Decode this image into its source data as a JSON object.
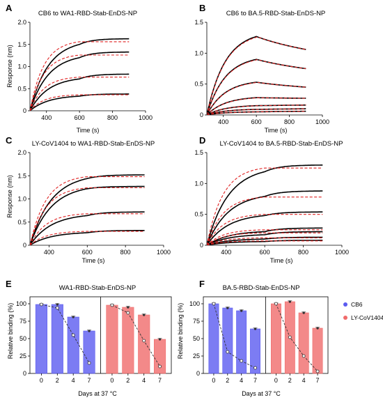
{
  "palette": {
    "cb6": "#5b5bf0",
    "ly": "#f06b6b",
    "fit": "#e02020",
    "data": "#000000",
    "dashed": "#333333"
  },
  "kinetics": [
    {
      "label": "A",
      "title": "CB6 to WA1-RBD-Stab-EnDS-NP",
      "xlabel": "Time (s)",
      "ylabel": "Response (nm)",
      "xlim": [
        300,
        1000
      ],
      "ylim": [
        0,
        2.0
      ],
      "xticks": [
        400,
        600,
        800,
        1000
      ],
      "yticks": [
        0,
        0.5,
        1.0,
        1.5,
        2.0
      ],
      "yticklabels": [
        "0",
        "0.5",
        "1.0",
        "1.5",
        "2.0"
      ],
      "kind": "plateau",
      "t0": 300,
      "t1": 600,
      "t2": 900,
      "curves": [
        {
          "r": 1.5,
          "d": 0.13,
          "fit": 1.56
        },
        {
          "r": 1.2,
          "d": 0.13,
          "fit": 1.26
        },
        {
          "r": 0.72,
          "d": 0.11,
          "fit": 0.76
        },
        {
          "r": 0.33,
          "d": 0.05,
          "fit": 0.36
        }
      ]
    },
    {
      "label": "B",
      "title": "CB6 to BA.5-RBD-Stab-EnDS-NP",
      "xlabel": "Time (s)",
      "ylabel": "",
      "xlim": [
        300,
        1000
      ],
      "ylim": [
        0,
        1.5
      ],
      "xticks": [
        400,
        600,
        800,
        1000
      ],
      "yticks": [
        0,
        0.5,
        1.0,
        1.5
      ],
      "yticklabels": [
        "0",
        "0.5",
        "1.0",
        "1.5"
      ],
      "kind": "decay",
      "t0": 300,
      "t1": 600,
      "t2": 900,
      "curves": [
        {
          "r": 1.27,
          "d": 1.06
        },
        {
          "r": 0.9,
          "d": 0.75
        },
        {
          "r": 0.53,
          "d": 0.45
        },
        {
          "r": 0.28,
          "d": 0.27
        },
        {
          "r": 0.15,
          "d": 0.16
        },
        {
          "r": 0.09,
          "d": 0.1
        },
        {
          "r": 0.05,
          "d": 0.06
        }
      ]
    },
    {
      "label": "C",
      "title": "LY-CoV1404 to WA1-RBD-Stab-EnDS-NP",
      "xlabel": "Time (s)",
      "ylabel": "Response (nm)",
      "xlim": [
        300,
        1000
      ],
      "ylim": [
        0,
        2.0
      ],
      "xticks": [
        400,
        600,
        800,
        1000
      ],
      "yticks": [
        0,
        0.5,
        1.0,
        1.5,
        2.0
      ],
      "yticklabels": [
        "0",
        "0.5",
        "1.0",
        "1.5",
        "2.0"
      ],
      "kind": "plateau",
      "t0": 300,
      "t1": 600,
      "t2": 900,
      "curves": [
        {
          "r": 1.44,
          "d": 0.08,
          "fit": 1.48
        },
        {
          "r": 1.22,
          "d": 0.05,
          "fit": 1.24
        },
        {
          "r": 0.64,
          "d": 0.08,
          "fit": 0.68
        },
        {
          "r": 0.27,
          "d": 0.05,
          "fit": 0.3
        }
      ]
    },
    {
      "label": "D",
      "title": "LY-CoV1404 to BA.5-RBD-Stab-EnDS-NP",
      "xlabel": "Time (s)",
      "ylabel": "",
      "xlim": [
        300,
        1000
      ],
      "ylim": [
        0,
        1.5
      ],
      "xticks": [
        400,
        600,
        800,
        1000
      ],
      "yticks": [
        0,
        0.5,
        1.0,
        1.5
      ],
      "yticklabels": [
        "0",
        "0.5",
        "1.0",
        "1.5"
      ],
      "kind": "plateau",
      "t0": 300,
      "t1": 600,
      "t2": 900,
      "curves": [
        {
          "r": 1.19,
          "d": 0.11,
          "fit": 1.25
        },
        {
          "r": 0.79,
          "d": 0.09,
          "fit": 0.78
        },
        {
          "r": 0.48,
          "d": 0.06,
          "fit": 0.5
        },
        {
          "r": 0.22,
          "d": 0.06,
          "fit": 0.25
        },
        {
          "r": 0.17,
          "d": 0.05,
          "fit": 0.2
        },
        {
          "r": 0.1,
          "d": 0.03,
          "fit": 0.12
        },
        {
          "r": 0.06,
          "d": 0.02,
          "fit": 0.07
        }
      ]
    }
  ],
  "stability": [
    {
      "label": "E",
      "title": "WA1-RBD-Stab-EnDS-NP",
      "ylabel": "Relative binding (%)",
      "ylim": [
        0,
        110
      ],
      "yticks": [
        0,
        25,
        50,
        75,
        100
      ],
      "groups": [
        {
          "antibody": "CB6",
          "days": [
            "0",
            "2",
            "4",
            "7"
          ],
          "bars": [
            99,
            99,
            81,
            61
          ],
          "dashed": [
            99,
            94,
            55,
            15
          ]
        },
        {
          "antibody": "LY-CoV1404",
          "days": [
            "0",
            "2",
            "4",
            "7"
          ],
          "bars": [
            98,
            95,
            84,
            49
          ],
          "dashed": [
            98,
            87,
            47,
            10
          ]
        }
      ]
    },
    {
      "label": "F",
      "title": "BA.5-RBD-Stab-EnDS-NP",
      "ylabel": "Relative binding (%)",
      "ylim": [
        0,
        110
      ],
      "yticks": [
        0,
        25,
        50,
        75,
        100
      ],
      "groups": [
        {
          "antibody": "CB6",
          "days": [
            "0",
            "2",
            "4",
            "7"
          ],
          "bars": [
            100,
            94,
            90,
            64
          ],
          "dashed": [
            100,
            31,
            18,
            8
          ]
        },
        {
          "antibody": "LY-CoV1404",
          "days": [
            "0",
            "2",
            "4",
            "7"
          ],
          "bars": [
            100,
            103,
            87,
            65
          ],
          "dashed": [
            100,
            52,
            25,
            3
          ]
        }
      ]
    }
  ],
  "stability_xlabel": "Days at 37 °C",
  "legend": [
    {
      "name": "CB6",
      "color": "#5b5bf0"
    },
    {
      "name": "LY-CoV1404",
      "color": "#f06b6b"
    }
  ]
}
